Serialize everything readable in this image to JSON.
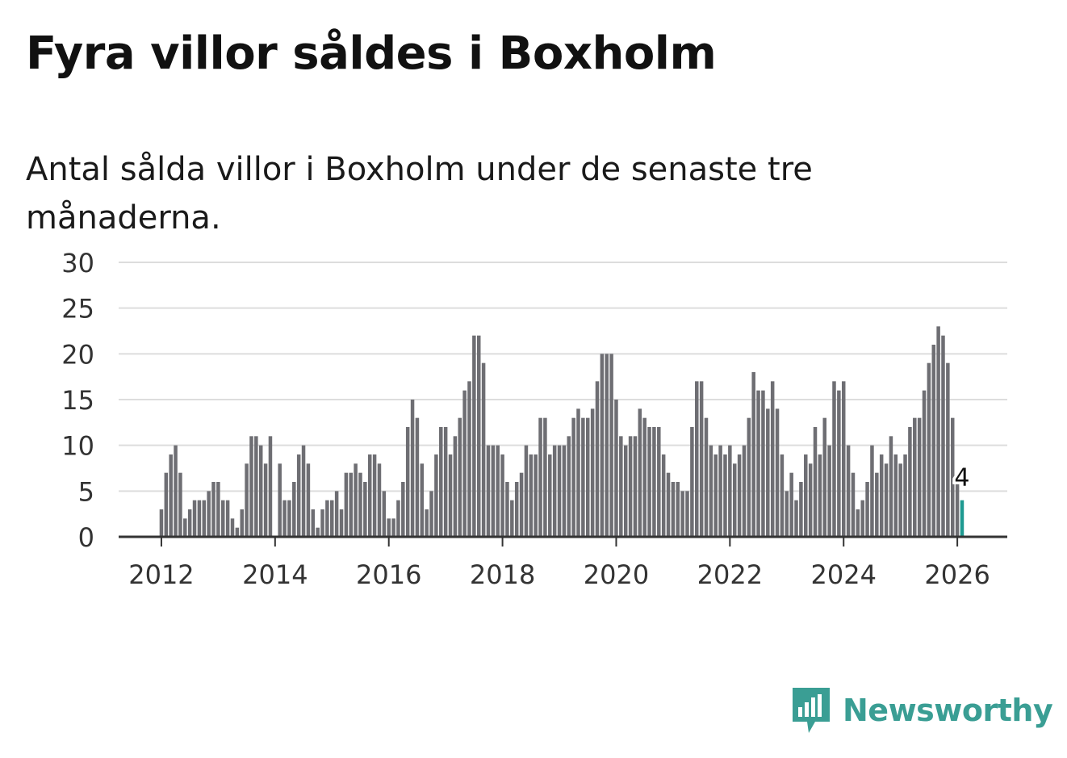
{
  "title": "Fyra villor såldes i Boxholm",
  "subtitle": "Antal sålda villor i Boxholm under de senaste tre månaderna.",
  "brand": {
    "name": "Newsworthy",
    "color": "#3a9e94",
    "icon": "newsworthy-logo-icon"
  },
  "colors": {
    "bar": "#6e6e73",
    "highlight": "#1f9a91",
    "grid": "#dddddd",
    "axis": "#333333"
  },
  "chart_data": {
    "type": "bar",
    "title": "",
    "xlabel": "",
    "ylabel": "",
    "ylim": [
      0,
      30
    ],
    "yticks": [
      0,
      5,
      10,
      15,
      20,
      25,
      30
    ],
    "xticks": [
      "2012",
      "2014",
      "2016",
      "2018",
      "2020",
      "2022",
      "2024",
      "2026"
    ],
    "x_start_year": 2012,
    "grid": true,
    "legend": "none",
    "series": [
      {
        "name": "Antal sålda villor (senaste tre månaderna)",
        "values": [
          3,
          7,
          9,
          10,
          7,
          2,
          3,
          4,
          4,
          4,
          5,
          6,
          6,
          4,
          4,
          2,
          1,
          3,
          8,
          11,
          11,
          10,
          8,
          11,
          0,
          8,
          4,
          4,
          6,
          9,
          10,
          8,
          3,
          1,
          3,
          4,
          4,
          5,
          3,
          7,
          7,
          8,
          7,
          6,
          9,
          9,
          8,
          5,
          2,
          2,
          4,
          6,
          12,
          15,
          13,
          8,
          3,
          5,
          9,
          12,
          12,
          9,
          11,
          13,
          16,
          17,
          22,
          22,
          19,
          10,
          10,
          10,
          9,
          6,
          4,
          6,
          7,
          10,
          9,
          9,
          13,
          13,
          9,
          10,
          10,
          10,
          11,
          13,
          14,
          13,
          13,
          14,
          17,
          20,
          20,
          20,
          15,
          11,
          10,
          11,
          11,
          14,
          13,
          12,
          12,
          12,
          9,
          7,
          6,
          6,
          5,
          5,
          12,
          17,
          17,
          13,
          10,
          9,
          10,
          9,
          10,
          8,
          9,
          10,
          13,
          18,
          16,
          16,
          14,
          17,
          14,
          9,
          5,
          7,
          4,
          6,
          9,
          8,
          12,
          9,
          13,
          10,
          17,
          16,
          17,
          10,
          7,
          3,
          4,
          6,
          10,
          7,
          9,
          8,
          11,
          9,
          8,
          9,
          12,
          13,
          13,
          16,
          19,
          21,
          23,
          22,
          19,
          13,
          6,
          4
        ]
      }
    ],
    "highlight": {
      "index": 169,
      "value": 4,
      "label": "4"
    }
  }
}
